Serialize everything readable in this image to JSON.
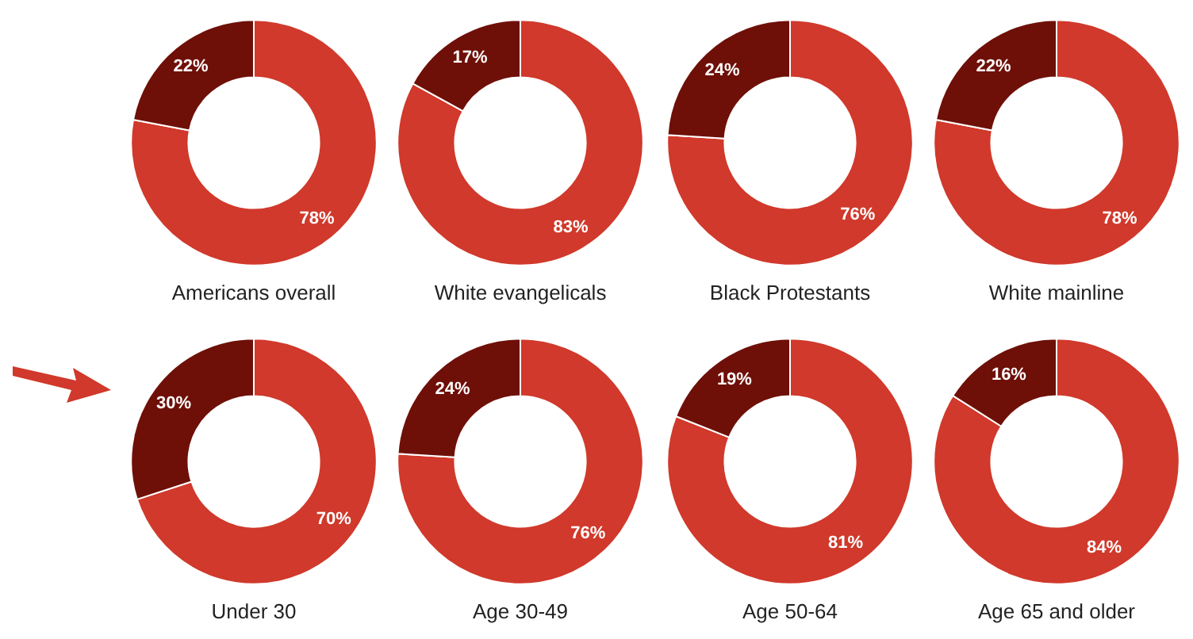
{
  "chart_data": [
    {
      "type": "donut",
      "title": "Americans overall",
      "categories": [
        null,
        null
      ],
      "values": [
        78,
        22
      ],
      "colors": [
        "#d0392b",
        "#6e1008"
      ],
      "value_labels": [
        "78%",
        "22%"
      ]
    },
    {
      "type": "donut",
      "title": "White evangelicals",
      "categories": [
        null,
        null
      ],
      "values": [
        83,
        17
      ],
      "colors": [
        "#d0392b",
        "#6e1008"
      ],
      "value_labels": [
        "83%",
        "17%"
      ]
    },
    {
      "type": "donut",
      "title": "Black Protestants",
      "categories": [
        null,
        null
      ],
      "values": [
        76,
        24
      ],
      "colors": [
        "#d0392b",
        "#6e1008"
      ],
      "value_labels": [
        "76%",
        "24%"
      ]
    },
    {
      "type": "donut",
      "title": "White mainline",
      "categories": [
        null,
        null
      ],
      "values": [
        78,
        22
      ],
      "colors": [
        "#d0392b",
        "#6e1008"
      ],
      "value_labels": [
        "78%",
        "22%"
      ]
    },
    {
      "type": "donut",
      "title": "Under 30",
      "categories": [
        null,
        null
      ],
      "values": [
        70,
        30
      ],
      "colors": [
        "#d0392b",
        "#6e1008"
      ],
      "value_labels": [
        "70%",
        "30%"
      ]
    },
    {
      "type": "donut",
      "title": "Age 30-49",
      "categories": [
        null,
        null
      ],
      "values": [
        76,
        24
      ],
      "colors": [
        "#d0392b",
        "#6e1008"
      ],
      "value_labels": [
        "76%",
        "24%"
      ]
    },
    {
      "type": "donut",
      "title": "Age 50-64",
      "categories": [
        null,
        null
      ],
      "values": [
        81,
        19
      ],
      "colors": [
        "#d0392b",
        "#6e1008"
      ],
      "value_labels": [
        "81%",
        "19%"
      ]
    },
    {
      "type": "donut",
      "title": "Age 65 and older",
      "categories": [
        null,
        null
      ],
      "values": [
        84,
        16
      ],
      "colors": [
        "#d0392b",
        "#6e1008"
      ],
      "value_labels": [
        "84%",
        "16%"
      ]
    }
  ]
}
